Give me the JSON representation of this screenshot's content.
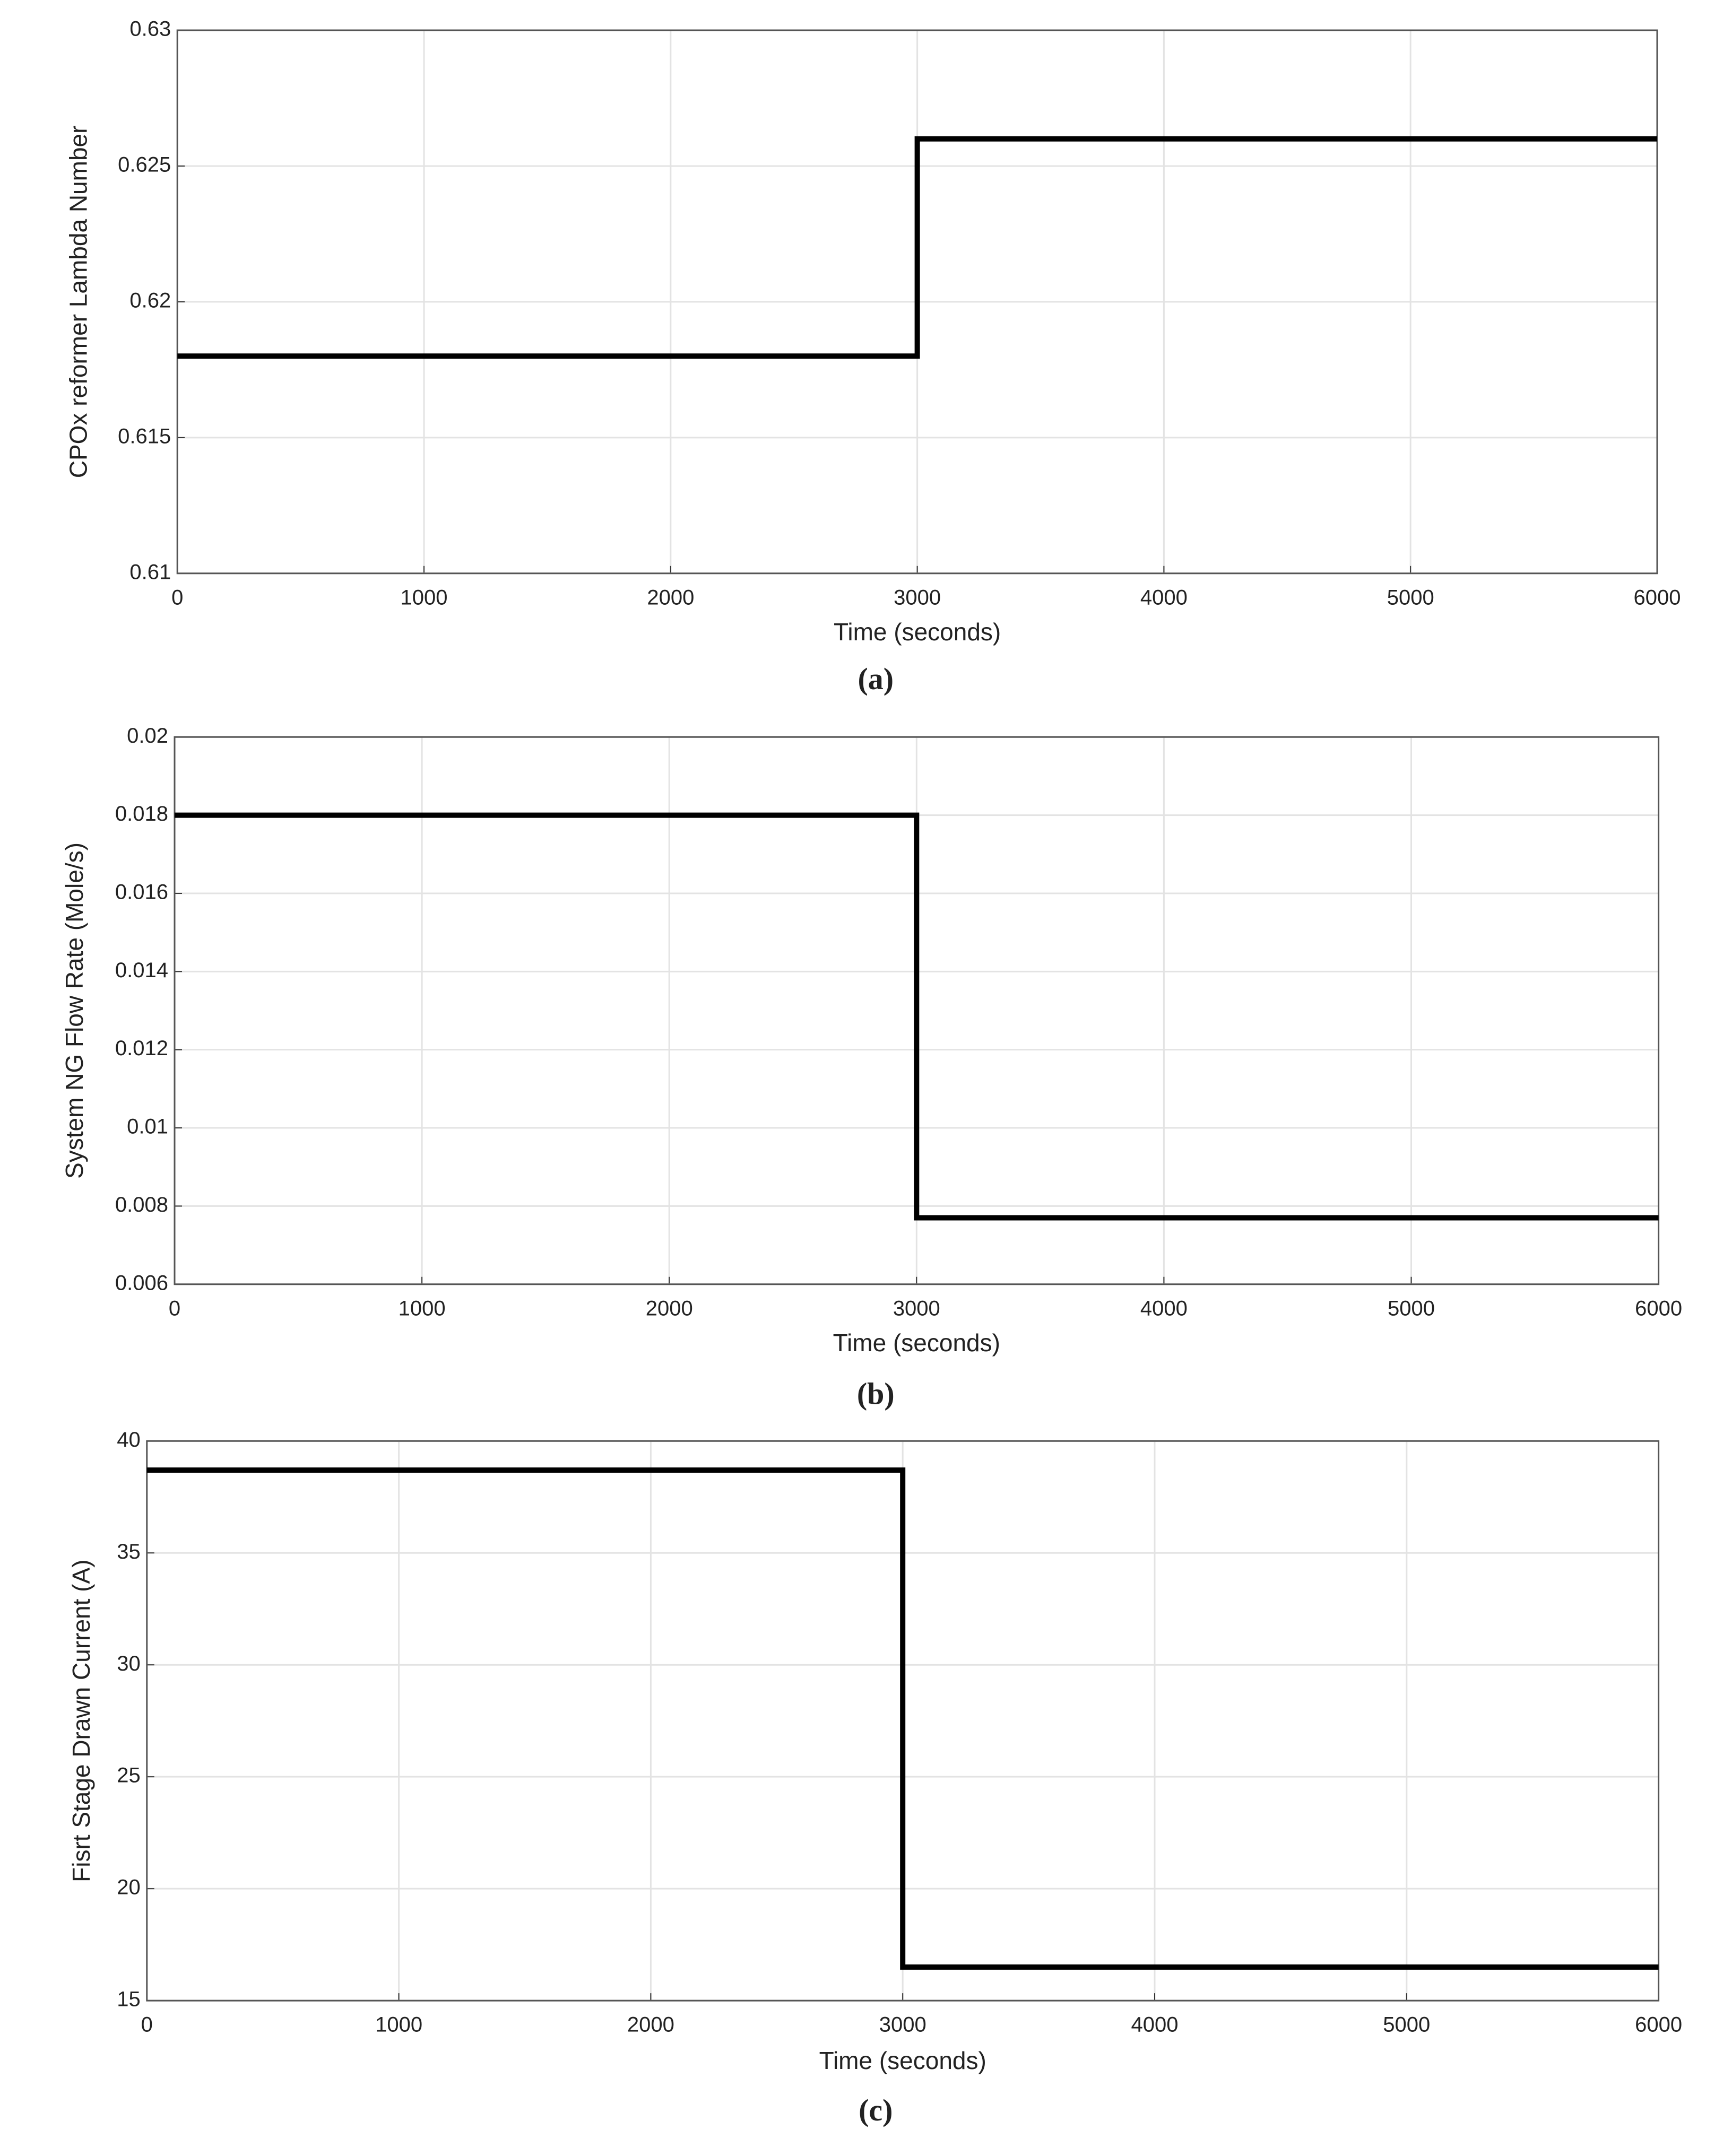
{
  "chart_data": [
    {
      "type": "line",
      "caption": "(a)",
      "xlabel": "Time (seconds)",
      "ylabel": "CPOx reformer Lambda Number",
      "x": [
        0,
        3000,
        3000,
        6000
      ],
      "series": [
        {
          "color": "#000000",
          "values": [
            0.618,
            0.618,
            0.626,
            0.626
          ]
        }
      ],
      "xlim": [
        0,
        6000
      ],
      "xticks": [
        0,
        1000,
        2000,
        3000,
        4000,
        5000,
        6000
      ],
      "ylim": [
        0.61,
        0.63
      ],
      "yticks": [
        0.61,
        0.615,
        0.62,
        0.625,
        0.63
      ],
      "grid": true
    },
    {
      "type": "line",
      "caption": "(b)",
      "xlabel": "Time (seconds)",
      "ylabel": "System NG Flow Rate (Mole/s)",
      "x": [
        0,
        3000,
        3000,
        6000
      ],
      "series": [
        {
          "color": "#000000",
          "values": [
            0.018,
            0.018,
            0.0077,
            0.0077
          ]
        }
      ],
      "xlim": [
        0,
        6000
      ],
      "xticks": [
        0,
        1000,
        2000,
        3000,
        4000,
        5000,
        6000
      ],
      "ylim": [
        0.006,
        0.02
      ],
      "yticks": [
        0.006,
        0.008,
        0.01,
        0.012,
        0.014,
        0.016,
        0.018,
        0.02
      ],
      "grid": true
    },
    {
      "type": "line",
      "caption": "(c)",
      "xlabel": "Time (seconds)",
      "ylabel": "Fisrt Stage Drawn Current (A)",
      "x": [
        0,
        3000,
        3000,
        6000
      ],
      "series": [
        {
          "color": "#000000",
          "values": [
            38.7,
            38.7,
            16.5,
            16.5
          ]
        }
      ],
      "xlim": [
        0,
        6000
      ],
      "xticks": [
        0,
        1000,
        2000,
        3000,
        4000,
        5000,
        6000
      ],
      "ylim": [
        15,
        40
      ],
      "yticks": [
        15,
        20,
        25,
        30,
        35,
        40
      ],
      "grid": true
    }
  ]
}
